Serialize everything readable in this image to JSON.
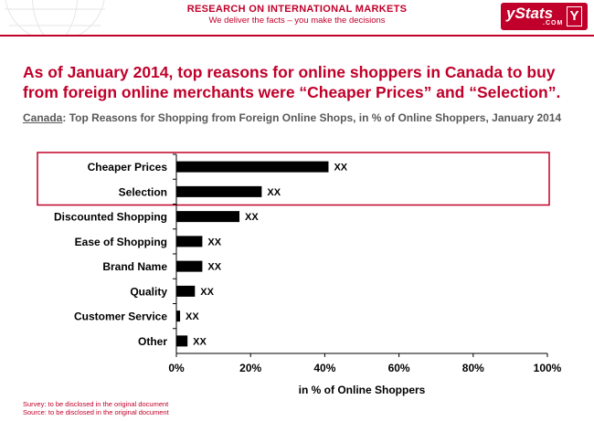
{
  "header": {
    "title": "RESEARCH ON INTERNATIONAL MARKETS",
    "subtitle": "We deliver the facts – you make the decisions",
    "logo_text": "yStats",
    "logo_domain": ".COM",
    "logo_mark": "Y"
  },
  "slide": {
    "title": "As of January 2014, top reasons for online shoppers in Canada to buy from foreign online merchants were “Cheaper Prices” and “Selection”.",
    "subtitle_country": "Canada",
    "subtitle_rest": ": Top Reasons for Shopping from Foreign Online Shops, in % of Online Shoppers, January 2014"
  },
  "footer": {
    "survey": "Survey: to be disclosed in the original document",
    "source": "Source: to be disclosed in the original document"
  },
  "colors": {
    "brand": "#c0002a",
    "bar": "#000000"
  },
  "chart_data": {
    "type": "bar",
    "orientation": "horizontal",
    "categories": [
      "Cheaper Prices",
      "Selection",
      "Discounted Shopping",
      "Ease of Shopping",
      "Brand Name",
      "Quality",
      "Customer Service",
      "Other"
    ],
    "values": [
      41,
      23,
      17,
      7,
      7,
      5,
      1,
      3
    ],
    "data_labels": [
      "XX",
      "XX",
      "XX",
      "XX",
      "XX",
      "XX",
      "XX",
      "XX"
    ],
    "xlabel": "in % of Online Shoppers",
    "xlim": [
      0,
      100
    ],
    "xticks": [
      "0%",
      "20%",
      "40%",
      "60%",
      "80%",
      "100%"
    ],
    "highlighted": [
      "Cheaper Prices",
      "Selection"
    ],
    "grid": false,
    "legend": "none"
  }
}
